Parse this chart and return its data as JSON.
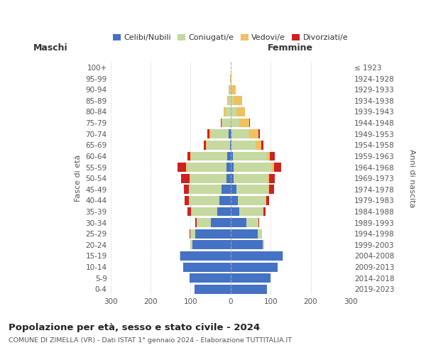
{
  "age_groups": [
    "0-4",
    "5-9",
    "10-14",
    "15-19",
    "20-24",
    "25-29",
    "30-34",
    "35-39",
    "40-44",
    "45-49",
    "50-54",
    "55-59",
    "60-64",
    "65-69",
    "70-74",
    "75-79",
    "80-84",
    "85-89",
    "90-94",
    "95-99",
    "100+"
  ],
  "birth_years": [
    "2019-2023",
    "2014-2018",
    "2009-2013",
    "2004-2008",
    "1999-2003",
    "1994-1998",
    "1989-1993",
    "1984-1988",
    "1979-1983",
    "1974-1978",
    "1969-1973",
    "1964-1968",
    "1959-1963",
    "1954-1958",
    "1949-1953",
    "1944-1948",
    "1939-1943",
    "1934-1938",
    "1929-1933",
    "1924-1928",
    "≤ 1923"
  ],
  "maschi": {
    "celibi": [
      90,
      102,
      118,
      125,
      95,
      88,
      50,
      34,
      28,
      22,
      10,
      10,
      8,
      2,
      4,
      0,
      0,
      0,
      0,
      0,
      0
    ],
    "coniugati": [
      0,
      0,
      0,
      2,
      5,
      12,
      35,
      65,
      75,
      82,
      90,
      100,
      90,
      58,
      46,
      20,
      12,
      5,
      2,
      0,
      0
    ],
    "vedovi": [
      0,
      0,
      0,
      0,
      0,
      0,
      0,
      0,
      1,
      1,
      2,
      2,
      2,
      2,
      3,
      3,
      5,
      4,
      2,
      1,
      0
    ],
    "divorziati": [
      0,
      0,
      0,
      0,
      0,
      2,
      3,
      8,
      10,
      12,
      22,
      20,
      8,
      5,
      5,
      1,
      0,
      0,
      0,
      0,
      0
    ]
  },
  "femmine": {
    "nubili": [
      90,
      100,
      118,
      130,
      80,
      68,
      40,
      22,
      18,
      15,
      8,
      8,
      5,
      2,
      2,
      0,
      0,
      0,
      0,
      0,
      0
    ],
    "coniugate": [
      0,
      0,
      0,
      2,
      4,
      10,
      30,
      60,
      70,
      80,
      85,
      95,
      85,
      60,
      45,
      22,
      14,
      8,
      3,
      1,
      0
    ],
    "vedove": [
      0,
      0,
      0,
      0,
      0,
      0,
      0,
      0,
      1,
      2,
      3,
      5,
      8,
      15,
      22,
      25,
      22,
      20,
      9,
      2,
      1
    ],
    "divorziate": [
      0,
      0,
      0,
      0,
      0,
      1,
      2,
      5,
      8,
      12,
      15,
      18,
      12,
      5,
      5,
      2,
      0,
      0,
      0,
      0,
      0
    ]
  },
  "colors": {
    "celibi_nubili": "#4472c4",
    "coniugati": "#c5d9a0",
    "vedovi": "#f0c060",
    "divorziati": "#cc2222"
  },
  "xlim": 300,
  "xticks": [
    -300,
    -200,
    -100,
    0,
    100,
    200,
    300
  ],
  "title": "Popolazione per età, sesso e stato civile - 2024",
  "subtitle": "COMUNE DI ZIMELLA (VR) - Dati ISTAT 1° gennaio 2024 - Elaborazione TUTTITALIA.IT",
  "label_maschi": "Maschi",
  "label_femmine": "Femmine",
  "ylabel_left": "Fasce di età",
  "ylabel_right": "Anni di nascita",
  "legend_labels": [
    "Celibi/Nubili",
    "Coniugati/e",
    "Vedovi/e",
    "Divorziati/e"
  ],
  "bg_color": "#ffffff",
  "grid_color": "#cccccc",
  "text_color": "#555555",
  "title_color": "#222222"
}
